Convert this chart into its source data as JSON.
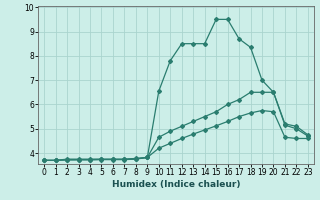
{
  "xlabel": "Humidex (Indice chaleur)",
  "line_color": "#2a7d6f",
  "bg_color": "#cceee8",
  "grid_color": "#aad4ce",
  "xlim": [
    -0.5,
    23.5
  ],
  "ylim": [
    3.55,
    10.05
  ],
  "xticks": [
    0,
    1,
    2,
    3,
    4,
    5,
    6,
    7,
    8,
    9,
    10,
    11,
    12,
    13,
    14,
    15,
    16,
    17,
    18,
    19,
    20,
    21,
    22,
    23
  ],
  "yticks": [
    4,
    5,
    6,
    7,
    8,
    9,
    10
  ],
  "curve1_x": [
    0,
    1,
    2,
    3,
    4,
    5,
    6,
    7,
    8,
    9,
    10,
    11,
    12,
    13,
    14,
    15,
    16,
    17,
    18,
    19,
    20,
    21,
    22,
    23
  ],
  "curve1_y": [
    3.7,
    3.7,
    3.75,
    3.75,
    3.75,
    3.75,
    3.75,
    3.75,
    3.78,
    3.82,
    6.55,
    7.8,
    8.5,
    8.5,
    8.5,
    9.5,
    9.5,
    8.7,
    8.35,
    7.0,
    6.5,
    5.2,
    5.1,
    4.75
  ],
  "curve2_x": [
    0,
    1,
    2,
    3,
    4,
    5,
    6,
    7,
    8,
    9,
    10,
    11,
    12,
    13,
    14,
    15,
    16,
    17,
    18,
    19,
    20,
    21,
    22,
    23
  ],
  "curve2_y": [
    3.7,
    3.7,
    3.72,
    3.72,
    3.72,
    3.73,
    3.73,
    3.73,
    3.75,
    3.82,
    4.65,
    4.9,
    5.1,
    5.3,
    5.5,
    5.7,
    6.0,
    6.2,
    6.5,
    6.5,
    6.5,
    5.15,
    5.0,
    4.7
  ],
  "curve3_x": [
    0,
    1,
    2,
    3,
    4,
    5,
    6,
    7,
    8,
    9,
    10,
    11,
    12,
    13,
    14,
    15,
    16,
    17,
    18,
    19,
    20,
    21,
    22,
    23
  ],
  "curve3_y": [
    3.7,
    3.7,
    3.72,
    3.73,
    3.73,
    3.74,
    3.74,
    3.74,
    3.76,
    3.82,
    4.2,
    4.4,
    4.6,
    4.78,
    4.95,
    5.12,
    5.3,
    5.5,
    5.65,
    5.75,
    5.7,
    4.65,
    4.6,
    4.6
  ]
}
